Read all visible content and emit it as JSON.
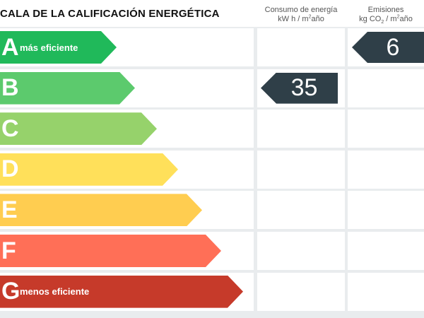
{
  "header": {
    "title": "CALA DE LA CALIFICACIÓN ENERGÉTICA",
    "consumo": {
      "line1": "Consumo de energía",
      "unit_pre": "kW h / m",
      "unit_sup": "2",
      "unit_post": "año"
    },
    "emisiones": {
      "line1": "Emisiones",
      "unit_pre": "kg CO",
      "unit_sub": "2",
      "unit_mid": "/ m",
      "unit_sup": "2",
      "unit_post": "año"
    }
  },
  "ratings": [
    {
      "letter": "A",
      "label": "más eficiente",
      "color": "#20b95a"
    },
    {
      "letter": "B",
      "label": "",
      "color": "#5cca6d"
    },
    {
      "letter": "C",
      "label": "",
      "color": "#96d26b"
    },
    {
      "letter": "D",
      "label": "",
      "color": "#ffe05a"
    },
    {
      "letter": "E",
      "label": "",
      "color": "#ffcd50"
    },
    {
      "letter": "F",
      "label": "",
      "color": "#ff6f57"
    },
    {
      "letter": "G",
      "label": "menos eficiente",
      "color": "#c63a2a"
    }
  ],
  "consumo_value": {
    "rating": "B",
    "value": "35"
  },
  "emisiones_value": {
    "rating": "A",
    "value": "6"
  },
  "badge_color": "#2f3f48"
}
